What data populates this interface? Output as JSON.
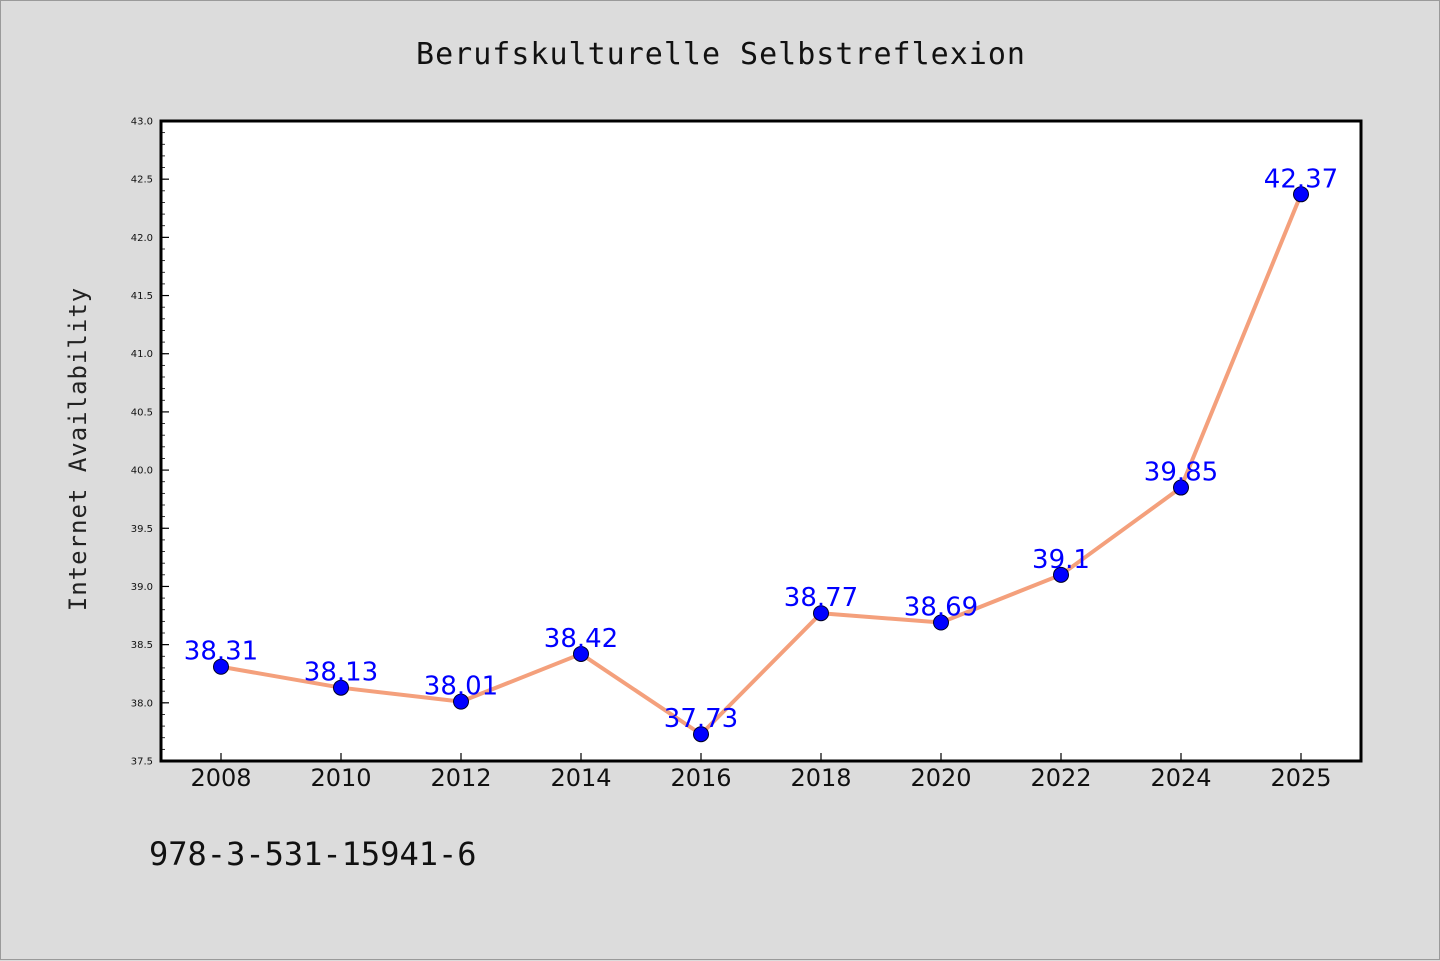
{
  "chart_data": {
    "type": "line",
    "title": "Berufskulturelle Selbstreflexion",
    "xlabel": "",
    "ylabel": "Internet Availability",
    "categories": [
      "2008",
      "2010",
      "2012",
      "2014",
      "2016",
      "2018",
      "2020",
      "2022",
      "2024",
      "2025"
    ],
    "series": [
      {
        "values": [
          38.31,
          38.13,
          38.01,
          38.42,
          37.73,
          38.77,
          38.69,
          39.1,
          39.85,
          42.37
        ],
        "labels": [
          "38.31",
          "38.13",
          "38.01",
          "38.42",
          "37.73",
          "38.77",
          "38.69",
          "39.1",
          "39.85",
          "42.37"
        ]
      }
    ],
    "ylim": [
      37.5,
      43.0
    ],
    "yticks": [
      "37.5",
      "38.0",
      "38.5",
      "39.0",
      "39.5",
      "40.0",
      "40.5",
      "41.0",
      "41.5",
      "42.0",
      "42.5",
      "43.0"
    ],
    "grid": false,
    "legend": "none",
    "colors": {
      "line": "#f4a07c",
      "marker": "#0000ff",
      "label": "#0000ff",
      "background": "#dcdcdc",
      "plot_bg": "#ffffff"
    }
  },
  "footer": {
    "isbn": "978-3-531-15941-6"
  }
}
